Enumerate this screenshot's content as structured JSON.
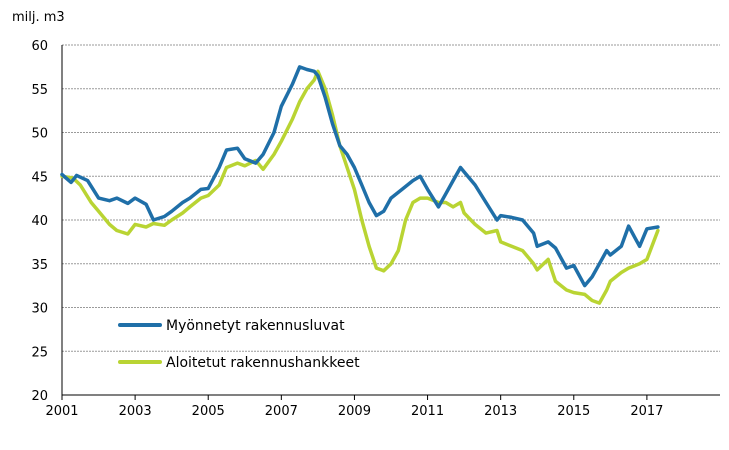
{
  "chart_data": {
    "type": "line",
    "unit_label": "milj. m3",
    "xlim": [
      2001,
      2019
    ],
    "ylim": [
      20,
      60
    ],
    "x_ticks": [
      "2001",
      "2003",
      "2005",
      "2007",
      "2009",
      "2011",
      "2013",
      "2015",
      "2017"
    ],
    "y_ticks": [
      "20",
      "25",
      "30",
      "35",
      "40",
      "45",
      "50",
      "55",
      "60"
    ],
    "grid": true,
    "legend_position": "lower-left",
    "series": [
      {
        "name": "Myönnetyt rakennusluvat",
        "color": "#1f6fa8",
        "x": [
          2001.0,
          2001.25,
          2001.4,
          2001.7,
          2002.0,
          2002.3,
          2002.5,
          2002.8,
          2003.0,
          2003.3,
          2003.5,
          2003.8,
          2004.0,
          2004.3,
          2004.5,
          2004.8,
          2005.0,
          2005.3,
          2005.5,
          2005.8,
          2006.0,
          2006.3,
          2006.5,
          2006.8,
          2007.0,
          2007.3,
          2007.5,
          2007.7,
          2007.9,
          2008.0,
          2008.2,
          2008.4,
          2008.6,
          2008.8,
          2009.0,
          2009.2,
          2009.4,
          2009.6,
          2009.8,
          2010.0,
          2010.3,
          2010.6,
          2010.8,
          2011.0,
          2011.3,
          2011.5,
          2011.7,
          2011.9,
          2012.0,
          2012.3,
          2012.6,
          2012.9,
          2013.0,
          2013.3,
          2013.6,
          2013.9,
          2014.0,
          2014.3,
          2014.5,
          2014.8,
          2015.0,
          2015.3,
          2015.5,
          2015.7,
          2015.9,
          2016.0,
          2016.3,
          2016.5,
          2016.8,
          2017.0,
          2017.3
        ],
        "values": [
          45.2,
          44.3,
          45.1,
          44.5,
          42.5,
          42.2,
          42.5,
          41.9,
          42.5,
          41.8,
          40.0,
          40.4,
          41.0,
          42.0,
          42.5,
          43.5,
          43.6,
          46.0,
          48.0,
          48.2,
          47.0,
          46.5,
          47.5,
          50.0,
          53.0,
          55.5,
          57.5,
          57.2,
          57.0,
          56.5,
          54.0,
          51.0,
          48.5,
          47.5,
          46.0,
          44.0,
          42.0,
          40.5,
          41.0,
          42.5,
          43.5,
          44.5,
          45.0,
          43.5,
          41.5,
          43.0,
          44.5,
          46.0,
          45.5,
          44.0,
          42.0,
          40.0,
          40.5,
          40.3,
          40.0,
          38.5,
          37.0,
          37.5,
          36.8,
          34.5,
          34.8,
          32.5,
          33.5,
          35.0,
          36.5,
          36.0,
          37.0,
          39.3,
          37.0,
          39.0,
          39.2
        ]
      },
      {
        "name": "Aloitetut rakennushankkeet",
        "color": "#b9d433",
        "x": [
          2001.0,
          2001.3,
          2001.5,
          2001.8,
          2002.0,
          2002.3,
          2002.5,
          2002.8,
          2003.0,
          2003.3,
          2003.5,
          2003.8,
          2004.0,
          2004.3,
          2004.5,
          2004.8,
          2005.0,
          2005.3,
          2005.5,
          2005.8,
          2006.0,
          2006.3,
          2006.5,
          2006.8,
          2007.0,
          2007.3,
          2007.5,
          2007.7,
          2007.9,
          2008.0,
          2008.2,
          2008.4,
          2008.6,
          2008.8,
          2009.0,
          2009.2,
          2009.4,
          2009.6,
          2009.8,
          2010.0,
          2010.2,
          2010.4,
          2010.6,
          2010.8,
          2011.0,
          2011.3,
          2011.5,
          2011.7,
          2011.9,
          2012.0,
          2012.3,
          2012.6,
          2012.9,
          2013.0,
          2013.3,
          2013.6,
          2013.9,
          2014.0,
          2014.3,
          2014.5,
          2014.8,
          2015.0,
          2015.3,
          2015.5,
          2015.7,
          2015.9,
          2016.0,
          2016.3,
          2016.5,
          2016.8,
          2017.0,
          2017.3
        ],
        "values": [
          45.0,
          44.8,
          44.0,
          42.0,
          41.0,
          39.5,
          38.8,
          38.4,
          39.5,
          39.2,
          39.6,
          39.4,
          40.0,
          40.8,
          41.5,
          42.5,
          42.8,
          44.0,
          46.0,
          46.5,
          46.2,
          46.8,
          45.8,
          47.5,
          49.0,
          51.5,
          53.5,
          55.0,
          56.0,
          57.0,
          55.0,
          52.0,
          48.5,
          46.0,
          43.5,
          40.0,
          37.0,
          34.5,
          34.2,
          35.0,
          36.5,
          40.0,
          42.0,
          42.5,
          42.5,
          42.0,
          42.0,
          41.5,
          42.0,
          40.8,
          39.5,
          38.5,
          38.8,
          37.5,
          37.0,
          36.5,
          35.0,
          34.3,
          35.5,
          33.0,
          32.0,
          31.7,
          31.5,
          30.8,
          30.5,
          32.0,
          33.0,
          34.0,
          34.5,
          35.0,
          35.5,
          38.8
        ]
      }
    ]
  }
}
